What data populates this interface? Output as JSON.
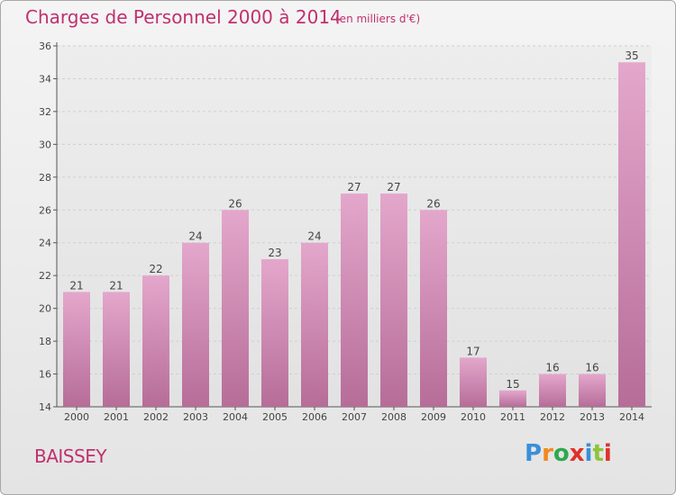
{
  "title": "Charges de Personnel 2000 à 2014",
  "subtitle": "(en milliers d'€)",
  "location": "BAISSEY",
  "logo": {
    "letters": [
      "P",
      "r",
      "o",
      "x",
      "i",
      "t",
      "i"
    ],
    "colors": [
      "#3a8fd8",
      "#f08a1c",
      "#2fa84f",
      "#e0302a",
      "#3a8fd8",
      "#8fc43a",
      "#e0302a"
    ]
  },
  "chart_data": {
    "type": "bar",
    "categories": [
      "2000",
      "2001",
      "2002",
      "2003",
      "2004",
      "2005",
      "2006",
      "2007",
      "2008",
      "2009",
      "2010",
      "2011",
      "2012",
      "2013",
      "2014"
    ],
    "values": [
      21,
      21,
      22,
      24,
      26,
      23,
      24,
      27,
      27,
      26,
      17,
      15,
      16,
      16,
      35
    ],
    "ylim": [
      14,
      36
    ],
    "yticks": [
      14,
      16,
      18,
      20,
      22,
      24,
      26,
      28,
      30,
      32,
      34,
      36
    ],
    "grid": true,
    "bar_color_top": "#e4a7cc",
    "bar_color_bottom": "#b66d98"
  }
}
